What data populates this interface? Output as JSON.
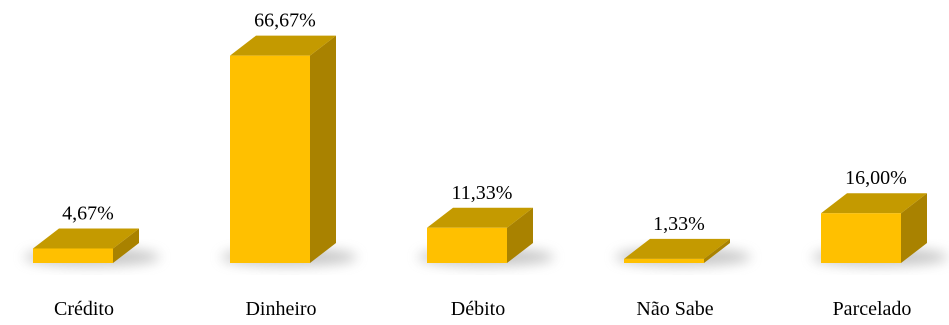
{
  "chart_data": {
    "type": "bar",
    "style": "3d-column",
    "categories": [
      "Crédito",
      "Dinheiro",
      "Débito",
      "Não Sabe",
      "Parcelado"
    ],
    "values": [
      4.67,
      66.67,
      11.33,
      1.33,
      16.0
    ],
    "data_labels": [
      "4,67%",
      "66,67%",
      "11,33%",
      "1,33%",
      "16,00%"
    ],
    "title": "",
    "xlabel": "",
    "ylabel": "",
    "ylim": [
      0,
      70
    ],
    "grid": false,
    "legend": "none",
    "colors": {
      "front": "#FFC000",
      "top": "#C49A00",
      "side": "#A98200",
      "shadow": "#9a9a9a"
    }
  }
}
